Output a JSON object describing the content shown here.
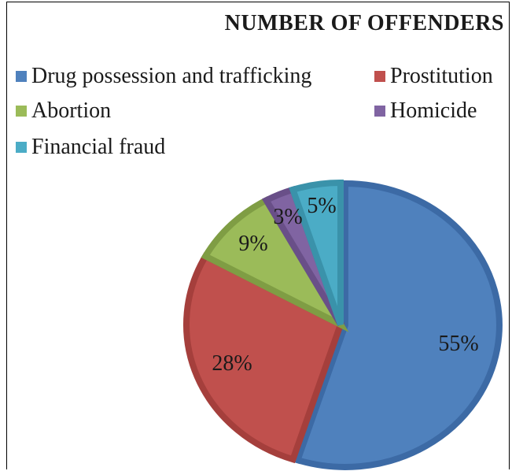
{
  "chart_data": {
    "type": "pie",
    "title": "NUMBER OF OFFENDERS",
    "legend_position": "top",
    "slices": [
      {
        "name": "Drug possession and trafficking",
        "value": 55,
        "label": "55%",
        "color": "#4f81bd",
        "border": "#3c6aa5"
      },
      {
        "name": "Prostitution",
        "value": 28,
        "label": "28%",
        "color": "#c0504d",
        "border": "#a53f3c"
      },
      {
        "name": "Abortion",
        "value": 9,
        "label": "9%",
        "color": "#9bbb59",
        "border": "#7f9d44"
      },
      {
        "name": "Homicide",
        "value": 3,
        "label": "3%",
        "color": "#8064a2",
        "border": "#694f88"
      },
      {
        "name": "Financial fraud",
        "value": 5,
        "label": "5%",
        "color": "#4bacc6",
        "border": "#3a92aa"
      }
    ]
  }
}
